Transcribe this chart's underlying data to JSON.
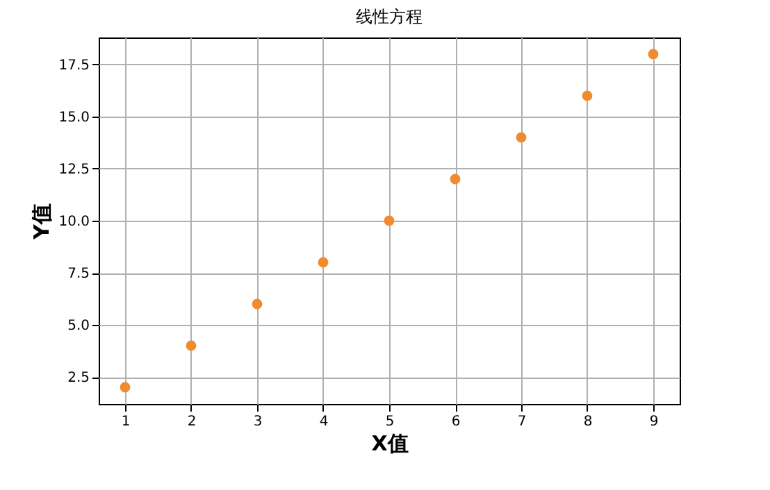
{
  "chart_data": {
    "type": "scatter",
    "title": "线性方程",
    "xlabel": "X值",
    "ylabel": "Y值",
    "x": [
      1,
      2,
      3,
      4,
      5,
      6,
      7,
      8,
      9
    ],
    "series": [
      {
        "color": "#f28a2e",
        "values": [
          2,
          4,
          6,
          8,
          10,
          12,
          14,
          16,
          18
        ]
      }
    ],
    "xlim": [
      0.6,
      9.4
    ],
    "xticks": [
      1,
      2,
      3,
      4,
      5,
      6,
      7,
      8,
      9
    ],
    "ylim": [
      1.2,
      18.8
    ],
    "yticks": [
      {
        "value": 2.5,
        "label": "2.5"
      },
      {
        "value": 5,
        "label": "5.0"
      },
      {
        "value": 7.5,
        "label": "7.5"
      },
      {
        "value": 10,
        "label": "10.0"
      },
      {
        "value": 12.5,
        "label": "12.5"
      },
      {
        "value": 15,
        "label": "15.0"
      },
      {
        "value": 17.5,
        "label": "17.5"
      }
    ],
    "grid": true,
    "marker": "circle"
  }
}
